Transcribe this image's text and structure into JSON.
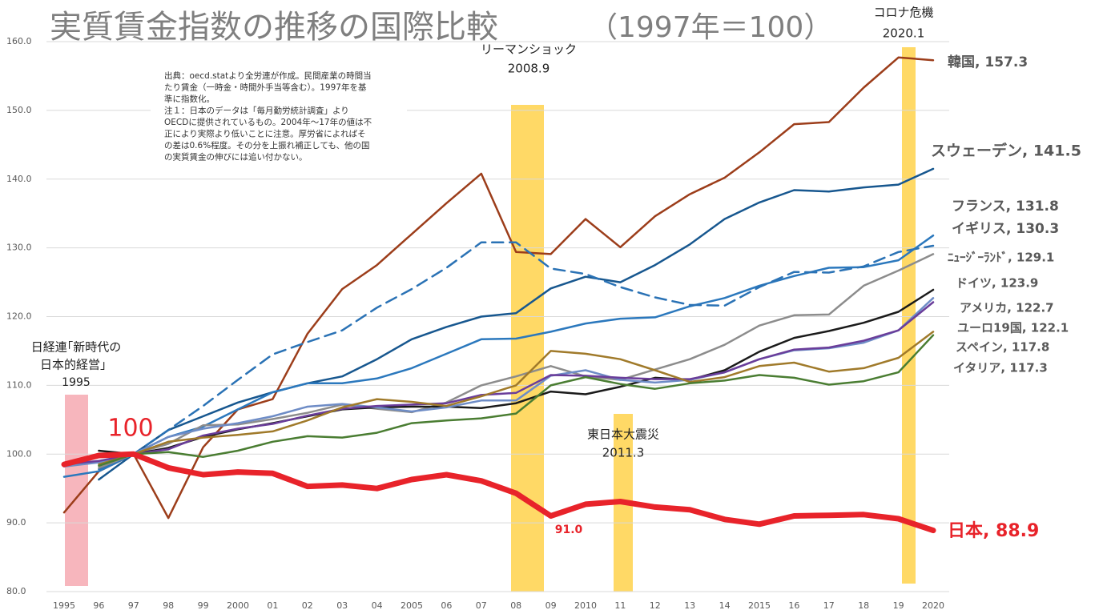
{
  "chart_data": {
    "type": "line",
    "title": "実質賃金指数の推移の国際比較",
    "subtitle": "（1997年＝100）",
    "note": [
      "出典：oecd.statより全労連が作成。民間産業の時間当",
      "たり賃金（一時金・時間外手当等含む）。1997年を基",
      "準に指数化。",
      "注１：日本のデータは「毎月勤労統計調査」より",
      "OECDに提供されているもの。2004年～17年の値は不",
      "正により実際より低いことに注意。厚労省によればそ",
      "の差は0.6%程度。その分を上振れ補正しても、他の国",
      "の実質賃金の伸びには追い付かない。"
    ],
    "annotations": [
      {
        "text": "リーマンショック",
        "date": "2008.9"
      },
      {
        "text": "コロナ危機",
        "date": "2020.1"
      },
      {
        "text": "東日本大震災",
        "date": "2011.3"
      },
      {
        "text": "日経連｢新時代の",
        "text2": "日本的経営」",
        "date": "1995"
      },
      {
        "text": "100"
      },
      {
        "text": "91.0"
      }
    ],
    "categories": [
      "1995",
      "96",
      "97",
      "98",
      "99",
      "2000",
      "01",
      "02",
      "03",
      "04",
      "2005",
      "06",
      "07",
      "08",
      "09",
      "2010",
      "11",
      "12",
      "13",
      "14",
      "2015",
      "16",
      "17",
      "18",
      "19",
      "2020"
    ],
    "ylim": [
      80,
      160
    ],
    "yticks": [
      {
        "value": 80,
        "label": "80.0"
      },
      {
        "value": 90,
        "label": "90.0"
      },
      {
        "value": 100,
        "label": "100.0"
      },
      {
        "value": 110,
        "label": "110.0"
      },
      {
        "value": 120,
        "label": "120.0"
      },
      {
        "value": 130,
        "label": "130.0"
      },
      {
        "value": 140,
        "label": "140.0"
      },
      {
        "value": 150,
        "label": "150.0"
      },
      {
        "value": 160,
        "label": "160.0"
      }
    ],
    "grid": true,
    "series": [
      {
        "name": "韓国, 157.3",
        "color": "#9c3d1a",
        "values": [
          91.5,
          97.5,
          100,
          90.7,
          101,
          106.5,
          108,
          117.5,
          124,
          127.5,
          132,
          136.5,
          140.8,
          129.4,
          129.1,
          134.2,
          130.1,
          134.6,
          137.8,
          140.2,
          143.9,
          148,
          148.3,
          153.3,
          157.7,
          157.3
        ]
      },
      {
        "name": "スウェーデン, 141.5",
        "color": "#17578f",
        "values": [
          null,
          96.3,
          100,
          103.5,
          105.5,
          107.5,
          109,
          110.3,
          111.3,
          113.8,
          116.7,
          118.5,
          120,
          120.5,
          124.1,
          125.8,
          125,
          127.5,
          130.5,
          134.2,
          136.6,
          138.4,
          138.2,
          138.8,
          139.2,
          141.5
        ]
      },
      {
        "name": "フランス, 131.8",
        "color": "#2b78bd",
        "values": [
          96.7,
          97.5,
          100,
          102.5,
          104,
          106.5,
          109,
          110.3,
          110.3,
          111,
          112.5,
          114.6,
          116.7,
          116.8,
          117.8,
          119,
          119.7,
          119.9,
          121.5,
          122.7,
          124.5,
          125.9,
          127.1,
          127.2,
          128.2,
          131.8
        ]
      },
      {
        "name": "イギリス, 130.3",
        "color": "#2a72b5",
        "dashed": true,
        "values": [
          null,
          97.8,
          100,
          103.5,
          107,
          110.8,
          114.5,
          116.3,
          118,
          121.3,
          124,
          127.1,
          130.8,
          130.8,
          127,
          126.2,
          124.3,
          122.8,
          121.7,
          121.6,
          124.3,
          126.5,
          126.4,
          127.3,
          129.4,
          130.3
        ]
      },
      {
        "name": "ﾆｭｰｼﾞｰﾗﾝﾄﾞ, 129.1",
        "color": "#8c8c8c",
        "values": [
          null,
          98,
          100,
          101.5,
          104.2,
          104.3,
          105.1,
          106,
          107.2,
          106.6,
          106.1,
          107.5,
          110,
          111.3,
          112.8,
          111.3,
          110.8,
          112.3,
          113.8,
          115.9,
          118.7,
          120.2,
          120.3,
          124.5,
          126.7,
          129.1
        ]
      },
      {
        "name": "ドイツ, 123.9",
        "color": "#1a1a1a",
        "values": [
          null,
          100.5,
          100,
          100.9,
          102.5,
          103.6,
          104.5,
          105.5,
          106.5,
          106.8,
          106.9,
          106.9,
          106.7,
          107.4,
          109.1,
          108.7,
          109.8,
          111.1,
          110.8,
          112.2,
          114.9,
          116.9,
          117.9,
          119.1,
          120.7,
          123.9
        ]
      },
      {
        "name": "アメリカ, 122.7",
        "color": "#6e8cc6",
        "values": [
          98.2,
          98.8,
          100,
          102.5,
          103.7,
          104.5,
          105.5,
          106.9,
          107.3,
          106.8,
          106.2,
          106.8,
          107.8,
          107.8,
          111.4,
          112.2,
          110.8,
          110.4,
          110.8,
          111.9,
          113.8,
          115.1,
          115.4,
          116.2,
          118,
          122.7
        ]
      },
      {
        "name": "ユーロ19国, 122.1",
        "color": "#6a3d9a",
        "values": [
          98.5,
          99,
          100,
          100.7,
          102.7,
          103.7,
          104.4,
          105.6,
          106.6,
          107,
          107.2,
          107.4,
          108.6,
          108.9,
          111.5,
          111.4,
          111.1,
          110.9,
          110.9,
          111.9,
          113.8,
          115.2,
          115.5,
          116.5,
          118,
          122.1
        ]
      },
      {
        "name": "スペイン, 117.8",
        "color": "#a07a2a",
        "values": [
          null,
          98.5,
          100,
          101.8,
          102.4,
          102.8,
          103.3,
          104.9,
          106.8,
          108,
          107.6,
          107,
          108.4,
          110,
          115,
          114.6,
          113.8,
          112.2,
          110.5,
          111.2,
          112.8,
          113.3,
          112,
          112.5,
          114,
          117.8
        ]
      },
      {
        "name": "イタリア, 117.3",
        "color": "#4a7d32",
        "values": [
          null,
          98.3,
          100,
          100.3,
          99.6,
          100.5,
          101.8,
          102.6,
          102.4,
          103.1,
          104.5,
          104.9,
          105.2,
          105.9,
          110,
          111.2,
          110.2,
          109.5,
          110.3,
          110.7,
          111.5,
          111.1,
          110.1,
          110.6,
          111.9,
          117.3
        ]
      },
      {
        "name": "日本, 88.9",
        "color": "#e8232a",
        "width": 7,
        "values": [
          98.5,
          99.8,
          100,
          98,
          97,
          97.4,
          97.2,
          95.3,
          95.5,
          95,
          96.3,
          97,
          96.1,
          94.3,
          91,
          92.7,
          93.1,
          92.3,
          91.9,
          90.5,
          89.8,
          91,
          91.1,
          91.2,
          90.6,
          88.9
        ]
      }
    ]
  }
}
